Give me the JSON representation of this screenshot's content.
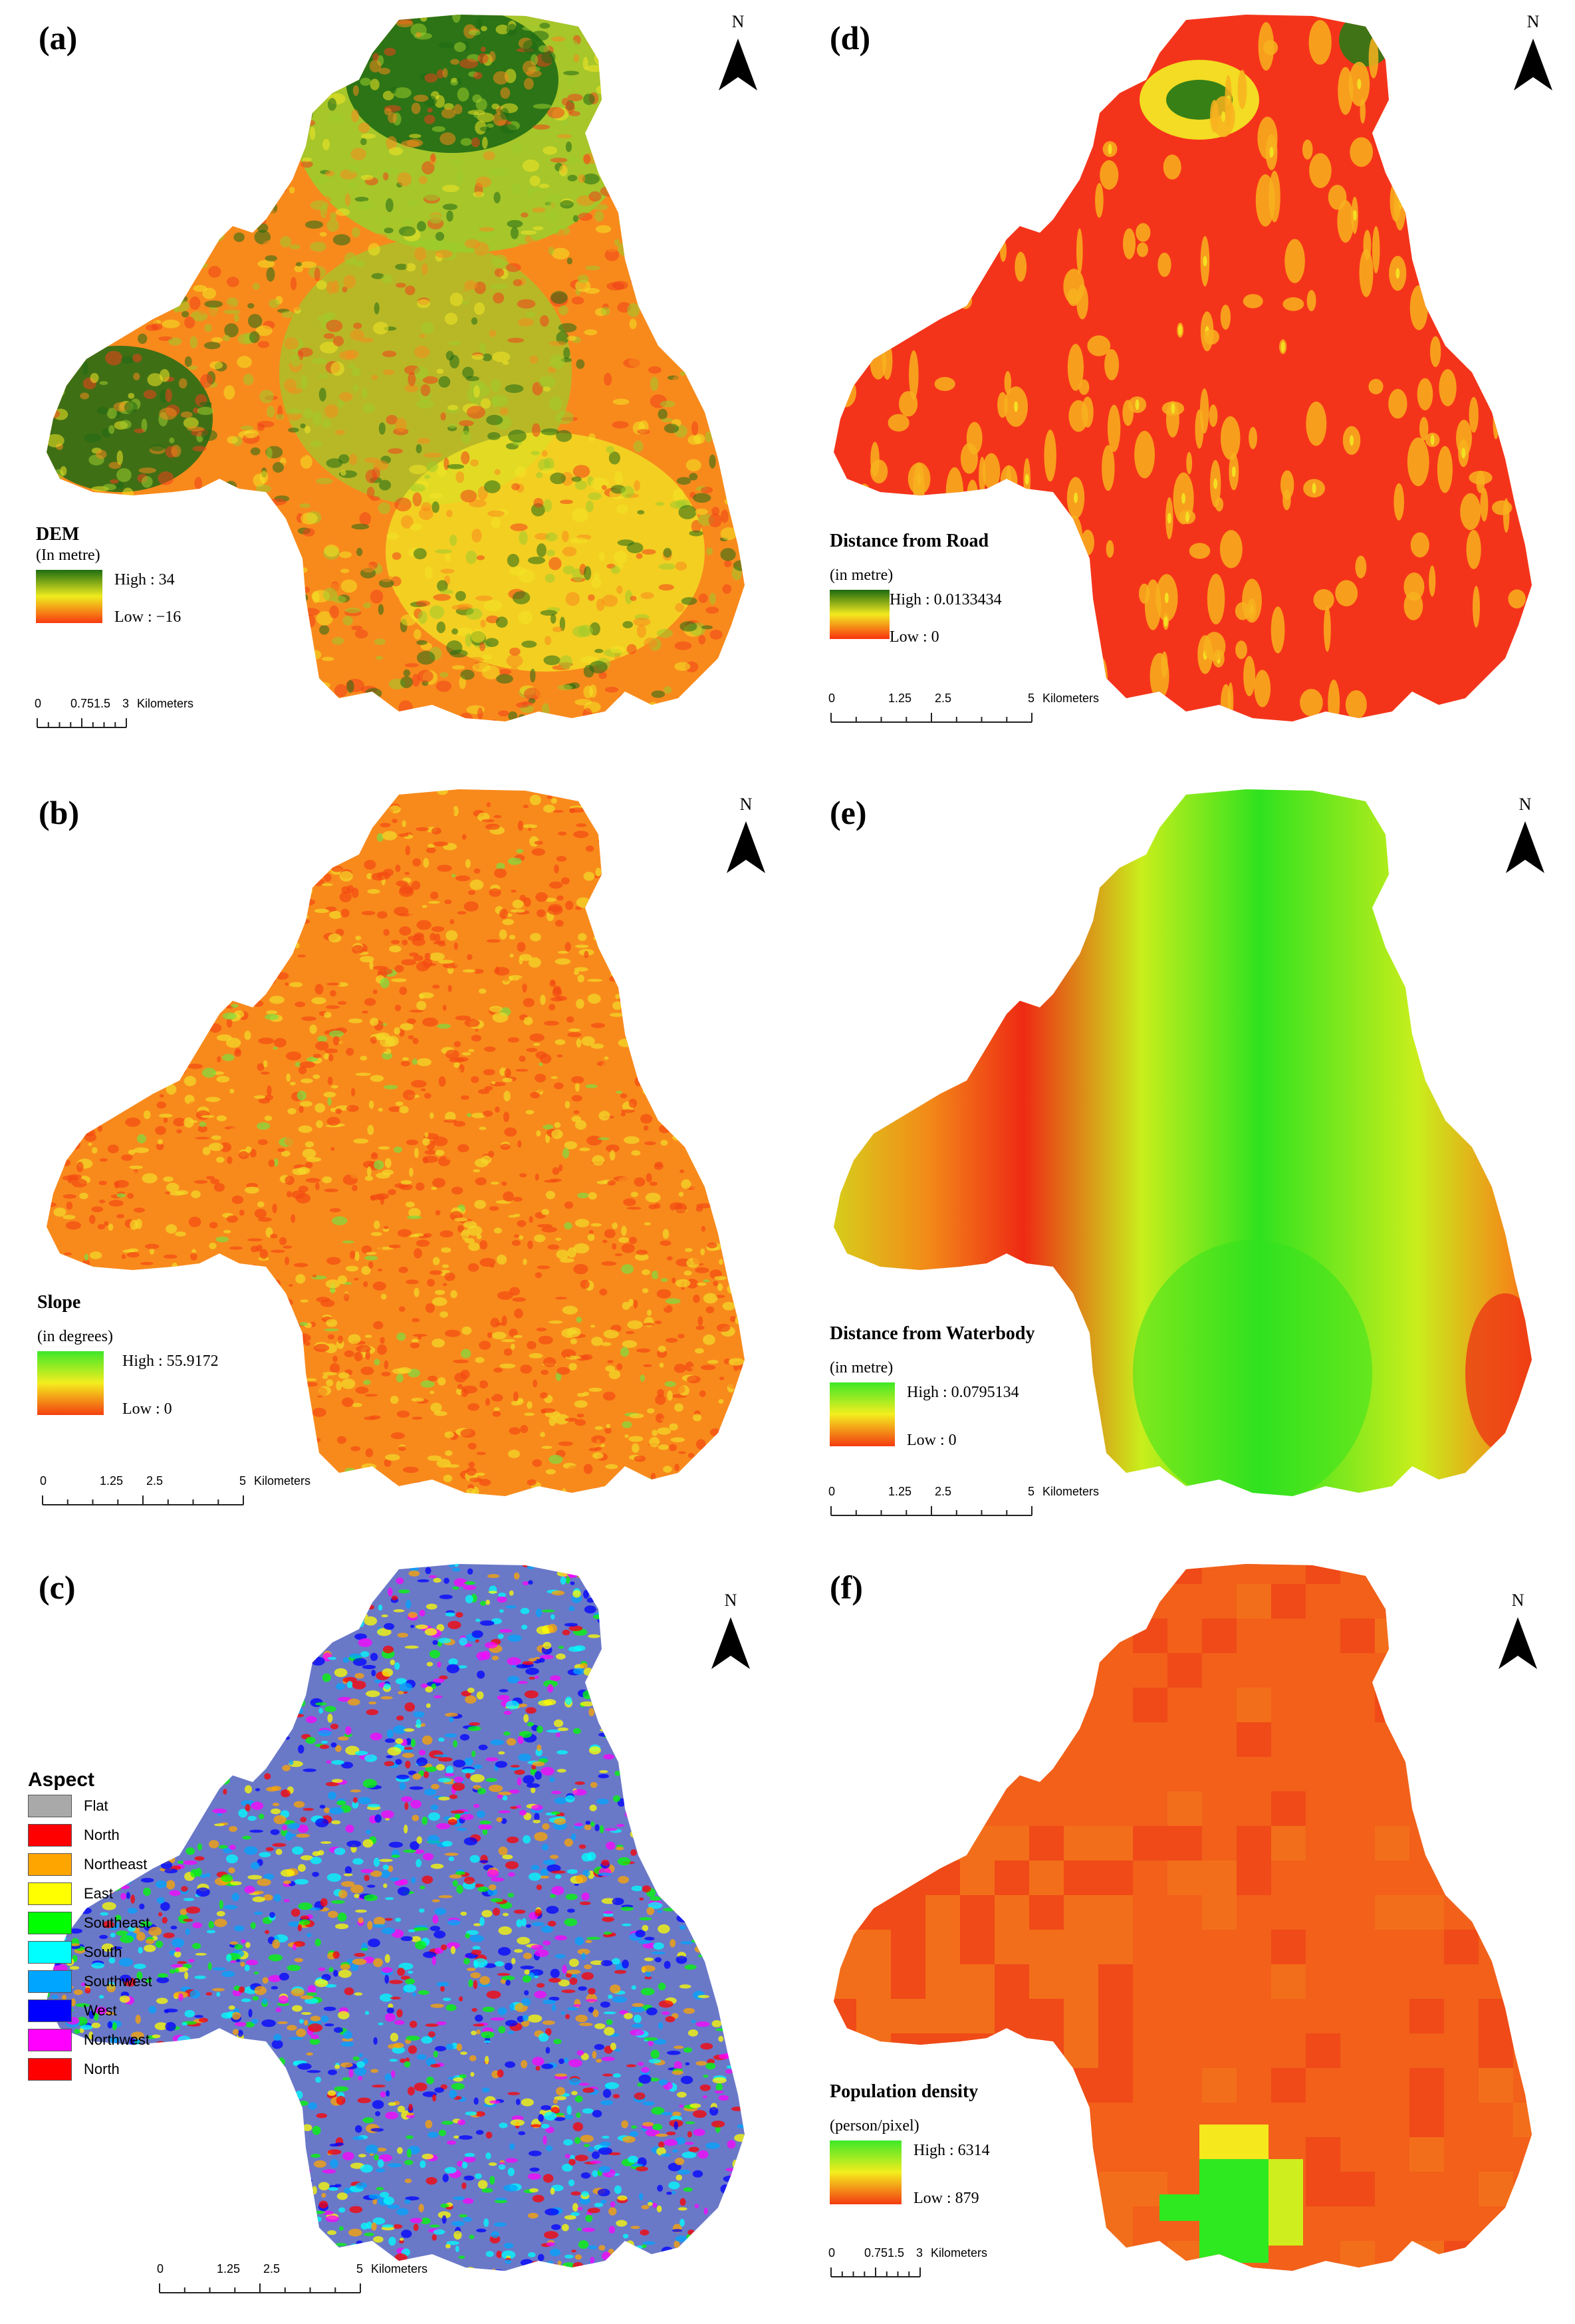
{
  "north_label": "N",
  "panels": {
    "a": {
      "letter": "(a)",
      "legend_title": "DEM",
      "legend_unit": "(In metre)",
      "high": "High : 34",
      "low": "Low : −16",
      "ramp_colors": [
        "#1e6e12",
        "#f0ec1e",
        "#f83a10"
      ],
      "scale_ticks": [
        "0",
        "0.751.5",
        "3"
      ],
      "scale_unit": "Kilometers"
    },
    "b": {
      "letter": "(b)",
      "legend_title": "Slope",
      "legend_unit": "(in degrees)",
      "high": "High : 55.9172",
      "low": "Low : 0",
      "ramp_colors": [
        "#3ee82a",
        "#f4ee1e",
        "#f33f10"
      ],
      "scale_ticks": [
        "0",
        "1.25",
        "2.5",
        "5"
      ],
      "scale_unit": "Kilometers"
    },
    "c": {
      "letter": "(c)",
      "scale_ticks": [
        "0",
        "1.25",
        "2.5",
        "5"
      ],
      "scale_unit": "Kilometers"
    },
    "d": {
      "letter": "(d)",
      "legend_title": "Distance from Road",
      "legend_unit": "(in metre)",
      "high": "High : 0.0133434",
      "low": "Low : 0",
      "ramp_colors": [
        "#1d6a10",
        "#f2ea1f",
        "#f8320e"
      ],
      "scale_ticks": [
        "0",
        "1.25",
        "2.5",
        "5"
      ],
      "scale_unit": "Kilometers"
    },
    "e": {
      "letter": "(e)",
      "legend_title": "Distance from Waterbody",
      "legend_unit": "(in metre)",
      "high": "High : 0.0795134",
      "low": "Low : 0",
      "ramp_colors": [
        "#3ee828",
        "#f4ee1e",
        "#f33a10"
      ],
      "scale_ticks": [
        "0",
        "1.25",
        "2.5",
        "5"
      ],
      "scale_unit": "Kilometers"
    },
    "f": {
      "letter": "(f)",
      "legend_title": "Population density",
      "legend_unit": "(person/pixel)",
      "high": "High : 6314",
      "low": "Low : 879",
      "ramp_colors": [
        "#3ee828",
        "#f4ee1e",
        "#f33a10"
      ],
      "scale_ticks": [
        "0",
        "0.751.5",
        "3"
      ],
      "scale_unit": "Kilometers"
    }
  },
  "aspect": {
    "title": "Aspect",
    "classes": [
      {
        "label": "Flat",
        "color": "#a9a9a9"
      },
      {
        "label": "North",
        "color": "#ff0000"
      },
      {
        "label": "Northeast",
        "color": "#ffa500"
      },
      {
        "label": "East",
        "color": "#ffff00"
      },
      {
        "label": "Southeast",
        "color": "#00ff00"
      },
      {
        "label": "South",
        "color": "#00ffff"
      },
      {
        "label": "Southwest",
        "color": "#00a5ff"
      },
      {
        "label": "West",
        "color": "#0000ff"
      },
      {
        "label": "Northwest",
        "color": "#ff00ff"
      },
      {
        "label": "North",
        "color": "#ff0000"
      }
    ]
  },
  "map_colors": {
    "a": [
      "#1f6a14",
      "#9ccc2c",
      "#f2e624",
      "#f88a1c",
      "#f0401a"
    ],
    "b": [
      "#f44a12",
      "#f88a1c",
      "#f2dc28",
      "#7ce040"
    ],
    "c": [
      "#ff0000",
      "#ffa500",
      "#ffff00",
      "#00ff00",
      "#00ffff",
      "#00a5ff",
      "#0000ff",
      "#ff00ff",
      "#a9a9a9"
    ],
    "d": [
      "#f4341a",
      "#f8b21e",
      "#f2e624",
      "#2c7a16"
    ],
    "e": [
      "#2fe21e",
      "#c9ee1c",
      "#f8d61e",
      "#f38a18",
      "#ee2a14"
    ],
    "f": [
      "#f2601a",
      "#ef4a18",
      "#f36e1a",
      "#f5e81c",
      "#cfee1e",
      "#2ee820"
    ]
  }
}
